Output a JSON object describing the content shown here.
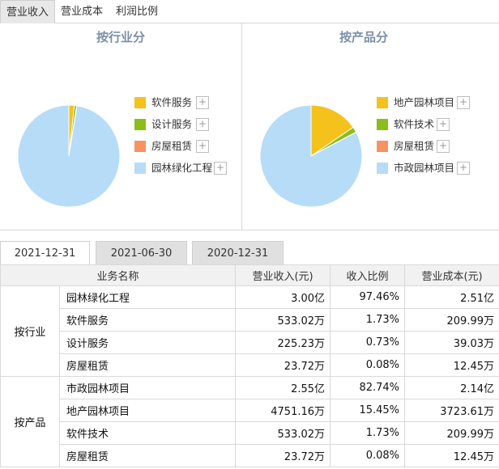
{
  "top_tabs": [
    {
      "label": "营业收入",
      "active": true
    },
    {
      "label": "营业成本",
      "active": false
    },
    {
      "label": "利润比例",
      "active": false
    }
  ],
  "colors": {
    "yellow": "#f5c11b",
    "green": "#8cbd1a",
    "orange": "#f79263",
    "light_blue": "#b6dcf8",
    "title": "#7a8fa8"
  },
  "chart_data": [
    {
      "type": "pie",
      "title": "按行业分",
      "slices": [
        {
          "label": "软件服务",
          "value": 1.73,
          "color": "#f5c11b"
        },
        {
          "label": "设计服务",
          "value": 0.73,
          "color": "#8cbd1a"
        },
        {
          "label": "房屋租赁",
          "value": 0.08,
          "color": "#f79263"
        },
        {
          "label": "园林绿化工程",
          "value": 97.46,
          "color": "#b6dcf8"
        }
      ],
      "legend_position": "right"
    },
    {
      "type": "pie",
      "title": "按产品分",
      "slices": [
        {
          "label": "地产园林项目",
          "value": 15.45,
          "color": "#f5c11b"
        },
        {
          "label": "软件技术",
          "value": 1.73,
          "color": "#8cbd1a"
        },
        {
          "label": "房屋租赁",
          "value": 0.08,
          "color": "#f79263"
        },
        {
          "label": "市政园林项目",
          "value": 82.74,
          "color": "#b6dcf8"
        }
      ],
      "legend_position": "right"
    },
    {
      "type": "table",
      "columns": [
        "业务名称",
        "营业收入(元)",
        "收入比例",
        "营业成本(元)"
      ],
      "groups": [
        {
          "label": "按行业",
          "rows": [
            {
              "name": "园林绿化工程",
              "revenue": "3.00亿",
              "ratio": "97.46%",
              "cost": "2.51亿"
            },
            {
              "name": "软件服务",
              "revenue": "533.02万",
              "ratio": "1.73%",
              "cost": "209.99万"
            },
            {
              "name": "设计服务",
              "revenue": "225.23万",
              "ratio": "0.73%",
              "cost": "39.03万"
            },
            {
              "name": "房屋租赁",
              "revenue": "23.72万",
              "ratio": "0.08%",
              "cost": "12.45万"
            }
          ]
        },
        {
          "label": "按产品",
          "rows": [
            {
              "name": "市政园林项目",
              "revenue": "2.55亿",
              "ratio": "82.74%",
              "cost": "2.14亿"
            },
            {
              "name": "地产园林项目",
              "revenue": "4751.16万",
              "ratio": "15.45%",
              "cost": "3723.61万"
            },
            {
              "name": "软件技术",
              "revenue": "533.02万",
              "ratio": "1.73%",
              "cost": "209.99万"
            },
            {
              "name": "房屋租赁",
              "revenue": "23.72万",
              "ratio": "0.08%",
              "cost": "12.45万"
            }
          ]
        }
      ]
    }
  ],
  "date_tabs": [
    {
      "label": "2021-12-31",
      "active": true
    },
    {
      "label": "2021-06-30",
      "active": false
    },
    {
      "label": "2020-12-31",
      "active": false
    }
  ],
  "legend_plus_symbol": "+"
}
